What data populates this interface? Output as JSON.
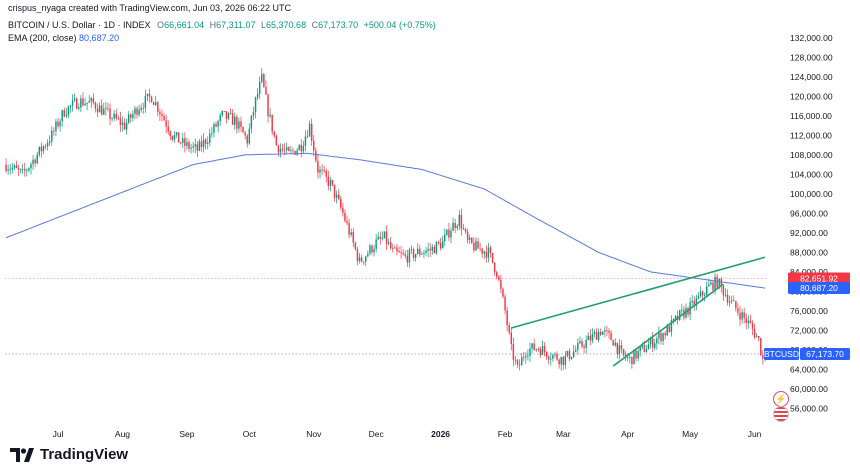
{
  "header": {
    "attribution": "crispus_nyaga created with TradingView.com, Jun 03, 2026 06:22 UTC",
    "symbol_line": "BITCOIN / U.S. Dollar · 1D · INDEX",
    "o_label": "O",
    "o_value": "66,661.04",
    "h_label": "H",
    "h_value": "67,311.07",
    "l_label": "L",
    "l_value": "65,370.68",
    "c_label": "C",
    "c_value": "67,173.70",
    "change": "+500.04 (+0.75%)",
    "ema_label": "EMA (200, close)",
    "ema_value": "80,687.20"
  },
  "branding": {
    "name": "TradingView"
  },
  "colors": {
    "up": "#089981",
    "down": "#f23645",
    "ema": "#5a7bd6",
    "wedge": "#22a06b",
    "red_line": "#f23645",
    "blue_label": "#2962ff",
    "grid_text": "#131722"
  },
  "chart_data": {
    "type": "candlestick",
    "symbol": "BTCUSD",
    "y_ticks": [
      "132,000.00",
      "128,000.00",
      "124,000.00",
      "120,000.00",
      "116,000.00",
      "112,000.00",
      "108,000.00",
      "104,000.00",
      "100,000.00",
      "96,000.00",
      "92,000.00",
      "88,000.00",
      "84,000.00",
      "80,000.00",
      "76,000.00",
      "72,000.00",
      "68,000.00",
      "64,000.00",
      "60,000.00",
      "56,000.00"
    ],
    "ylim": [
      52000,
      134000
    ],
    "x_ticks": [
      {
        "label": "Jul",
        "i": 25
      },
      {
        "label": "Aug",
        "i": 56
      },
      {
        "label": "Sep",
        "i": 87
      },
      {
        "label": "Oct",
        "i": 117
      },
      {
        "label": "Nov",
        "i": 148
      },
      {
        "label": "Dec",
        "i": 178
      },
      {
        "label": "2026",
        "i": 209
      },
      {
        "label": "Feb",
        "i": 240
      },
      {
        "label": "Mar",
        "i": 268
      },
      {
        "label": "Apr",
        "i": 299
      },
      {
        "label": "May",
        "i": 329
      },
      {
        "label": "Jun",
        "i": 360
      }
    ],
    "anchors": [
      [
        0,
        106000
      ],
      [
        8,
        104000
      ],
      [
        15,
        108000
      ],
      [
        22,
        112000
      ],
      [
        28,
        117000
      ],
      [
        35,
        119000
      ],
      [
        42,
        118500
      ],
      [
        50,
        116000
      ],
      [
        57,
        114000
      ],
      [
        64,
        118000
      ],
      [
        70,
        120000
      ],
      [
        74,
        117000
      ],
      [
        80,
        112000
      ],
      [
        86,
        110000
      ],
      [
        92,
        109000
      ],
      [
        98,
        112000
      ],
      [
        104,
        116000
      ],
      [
        110,
        115000
      ],
      [
        116,
        111000
      ],
      [
        120,
        119000
      ],
      [
        123,
        123500
      ],
      [
        126,
        117000
      ],
      [
        130,
        110000
      ],
      [
        136,
        108000
      ],
      [
        142,
        110000
      ],
      [
        146,
        114000
      ],
      [
        150,
        105000
      ],
      [
        156,
        102000
      ],
      [
        162,
        96000
      ],
      [
        166,
        91000
      ],
      [
        170,
        86000
      ],
      [
        174,
        88000
      ],
      [
        178,
        90000
      ],
      [
        182,
        91000
      ],
      [
        186,
        88000
      ],
      [
        192,
        87000
      ],
      [
        198,
        88000
      ],
      [
        204,
        88500
      ],
      [
        210,
        90000
      ],
      [
        214,
        93000
      ],
      [
        218,
        95000
      ],
      [
        222,
        90000
      ],
      [
        226,
        89000
      ],
      [
        232,
        88000
      ],
      [
        236,
        84000
      ],
      [
        240,
        76000
      ],
      [
        243,
        68000
      ],
      [
        246,
        64000
      ],
      [
        250,
        68000
      ],
      [
        256,
        68500
      ],
      [
        262,
        67000
      ],
      [
        268,
        66000
      ],
      [
        274,
        68000
      ],
      [
        280,
        70000
      ],
      [
        286,
        72000
      ],
      [
        292,
        70000
      ],
      [
        296,
        67000
      ],
      [
        300,
        66000
      ],
      [
        306,
        68000
      ],
      [
        312,
        70000
      ],
      [
        318,
        72000
      ],
      [
        324,
        75000
      ],
      [
        330,
        77000
      ],
      [
        334,
        79000
      ],
      [
        338,
        81000
      ],
      [
        342,
        82000
      ],
      [
        346,
        79500
      ],
      [
        350,
        77000
      ],
      [
        354,
        75000
      ],
      [
        358,
        73000
      ],
      [
        362,
        70000
      ],
      [
        364,
        66000
      ],
      [
        365,
        67173.7
      ]
    ],
    "ema_anchors": [
      [
        0,
        91000
      ],
      [
        30,
        96000
      ],
      [
        60,
        101000
      ],
      [
        90,
        106000
      ],
      [
        115,
        108000
      ],
      [
        145,
        108300
      ],
      [
        170,
        107000
      ],
      [
        200,
        105000
      ],
      [
        230,
        101000
      ],
      [
        255,
        95000
      ],
      [
        285,
        88000
      ],
      [
        310,
        84000
      ],
      [
        340,
        82200
      ],
      [
        365,
        80687.2
      ]
    ],
    "wedge_upper": [
      [
        243,
        72500
      ],
      [
        365,
        87000
      ]
    ],
    "wedge_lower": [
      [
        292,
        64700
      ],
      [
        345,
        81500
      ]
    ],
    "last_price": {
      "label": "BTCUSD",
      "value": "67,173.70",
      "y": 67173.7
    },
    "red_level": {
      "value": "82,651.92",
      "y": 82651.92
    },
    "ema_level": {
      "value": "80,687.20",
      "y": 80687.2
    }
  }
}
